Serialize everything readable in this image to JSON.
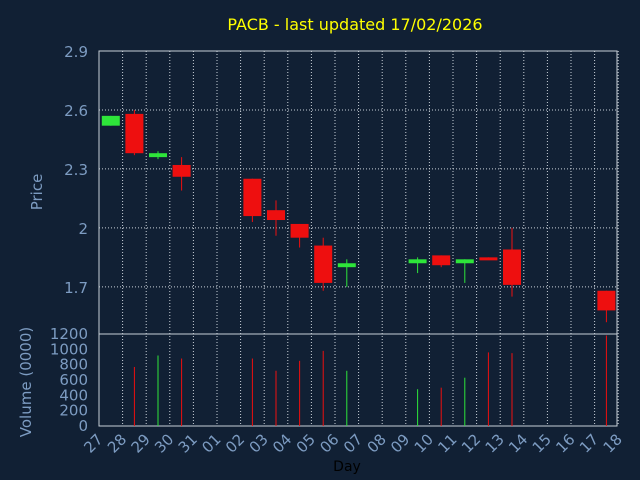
{
  "chart_data": {
    "type": "candlestick",
    "title": "PACB - last updated 17/02/2026",
    "xlabel": "Day",
    "price_panel": {
      "ylabel": "Price",
      "ylim": [
        1.46,
        2.9
      ],
      "yticks": [
        "2.9",
        "2.6",
        "2.3",
        "2",
        "1.7"
      ],
      "ytick_values": [
        2.9,
        2.6,
        2.3,
        2.0,
        1.7
      ],
      "grid": true
    },
    "volume_panel": {
      "ylabel": "Volume (0000)",
      "ylim": [
        0,
        1200
      ],
      "yticks": [
        "1200",
        "1000",
        "800",
        "600",
        "400",
        "200",
        "0"
      ],
      "ytick_values": [
        1200,
        1000,
        800,
        600,
        400,
        200,
        0
      ]
    },
    "x_ticks": [
      "27",
      "28",
      "29",
      "30",
      "31",
      "01",
      "02",
      "03",
      "04",
      "05",
      "06",
      "07",
      "08",
      "09",
      "10",
      "11",
      "12",
      "13",
      "14",
      "15",
      "16",
      "17",
      "18"
    ],
    "candles": [
      {
        "day": "27",
        "open": 2.52,
        "close": 2.57,
        "high": 2.57,
        "low": 2.52,
        "volume": null
      },
      {
        "day": "28",
        "open": 2.58,
        "close": 2.38,
        "high": 2.6,
        "low": 2.37,
        "volume": 770
      },
      {
        "day": "29",
        "open": 2.36,
        "close": 2.38,
        "high": 2.39,
        "low": 2.35,
        "volume": 920
      },
      {
        "day": "30",
        "open": 2.32,
        "close": 2.26,
        "high": 2.36,
        "low": 2.19,
        "volume": 880
      },
      {
        "day": "02",
        "open": 2.25,
        "close": 2.06,
        "high": 2.25,
        "low": 2.03,
        "volume": 880
      },
      {
        "day": "03",
        "open": 2.09,
        "close": 2.04,
        "high": 2.14,
        "low": 1.96,
        "volume": 720
      },
      {
        "day": "04",
        "open": 2.02,
        "close": 1.95,
        "high": 2.02,
        "low": 1.9,
        "volume": 850
      },
      {
        "day": "05",
        "open": 1.91,
        "close": 1.72,
        "high": 1.95,
        "low": 1.68,
        "volume": 980
      },
      {
        "day": "06",
        "open": 1.8,
        "close": 1.82,
        "high": 1.84,
        "low": 1.7,
        "volume": 720
      },
      {
        "day": "09",
        "open": 1.82,
        "close": 1.84,
        "high": 1.85,
        "low": 1.77,
        "volume": 480
      },
      {
        "day": "10",
        "open": 1.86,
        "close": 1.81,
        "high": 1.86,
        "low": 1.8,
        "volume": 500
      },
      {
        "day": "11",
        "open": 1.82,
        "close": 1.84,
        "high": 1.84,
        "low": 1.72,
        "volume": 630
      },
      {
        "day": "12",
        "open": 1.85,
        "close": 1.84,
        "high": 1.85,
        "low": 1.84,
        "volume": 960
      },
      {
        "day": "13",
        "open": 1.89,
        "close": 1.71,
        "high": 2.0,
        "low": 1.65,
        "volume": 950
      },
      {
        "day": "17",
        "open": 1.68,
        "close": 1.58,
        "high": 1.68,
        "low": 1.52,
        "volume": 1180
      }
    ]
  },
  "colors": {
    "background": "#112034",
    "up": "#2ee53a",
    "down": "#ee0f0f",
    "grid": "#c8d0d8",
    "axis_text": "#7d9cc2",
    "title": "#ffff00",
    "xlabel": "#000000"
  }
}
